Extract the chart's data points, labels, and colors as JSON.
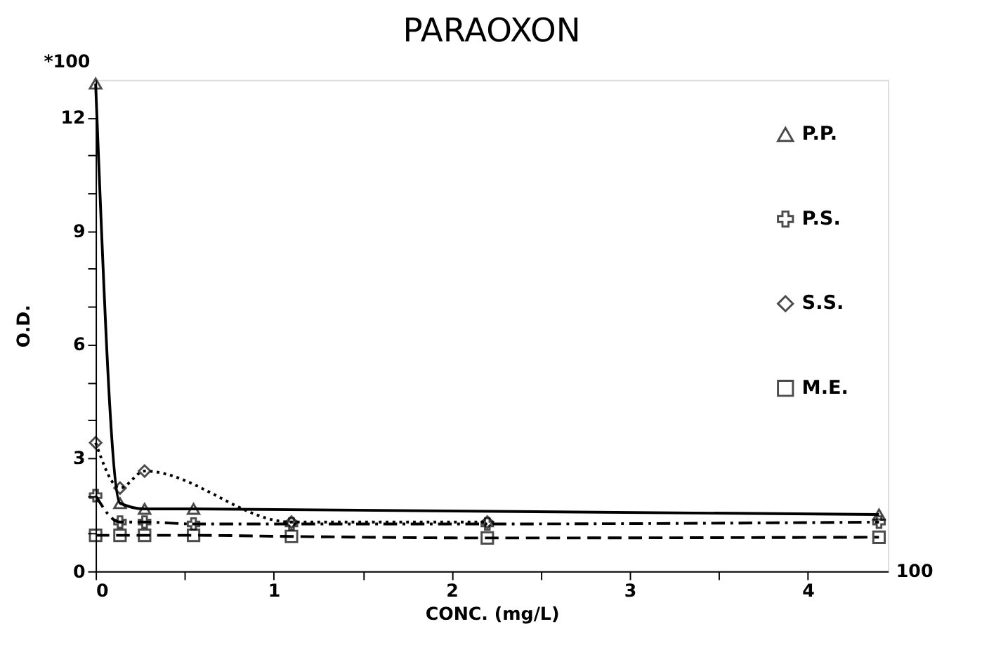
{
  "chart_data": {
    "type": "line",
    "title": "PARAOXON",
    "xlabel": "CONC.  (mg/L)",
    "ylabel": "O.D.",
    "x": [
      0,
      0.137,
      0.275,
      0.55,
      1.1,
      2.2,
      4.4
    ],
    "series": [
      {
        "name": "P.P.",
        "color": "#000000",
        "marker": "triangle",
        "line_style": "solid",
        "values": [
          12.9,
          1.8,
          1.65,
          1.65,
          null,
          null,
          1.5
        ]
      },
      {
        "name": "P.S.",
        "color": "#000000",
        "marker": "cross",
        "line_style": "dashdot",
        "values": [
          2.0,
          1.3,
          1.3,
          1.25,
          1.25,
          1.25,
          1.3
        ]
      },
      {
        "name": "S.S.",
        "color": "#000000",
        "marker": "diamond",
        "line_style": "dotted",
        "values": [
          3.4,
          2.2,
          2.65,
          null,
          1.3,
          1.3,
          null
        ]
      },
      {
        "name": "M.E.",
        "color": "#000000",
        "marker": "square",
        "line_style": "dashed",
        "values": [
          0.95,
          0.95,
          0.95,
          0.95,
          0.92,
          0.88,
          0.9
        ]
      }
    ],
    "xlim": [
      0,
      4.45
    ],
    "ylim": [
      0,
      13
    ],
    "xticks": [
      0,
      {
        "value": 0.5,
        "label": null
      },
      1,
      {
        "value": 1.5,
        "label": null
      },
      2,
      {
        "value": 2.5,
        "label": null
      },
      3,
      {
        "value": 3.5,
        "label": null
      },
      4
    ],
    "yticks": [
      0,
      {
        "value": 1,
        "label": null
      },
      {
        "value": 2,
        "label": null
      },
      3,
      {
        "value": 4,
        "label": null
      },
      {
        "value": 5,
        "label": null
      },
      6,
      {
        "value": 7,
        "label": null
      },
      {
        "value": 8,
        "label": null
      },
      9,
      {
        "value": 10,
        "label": null
      },
      {
        "value": 11,
        "label": null
      },
      12
    ],
    "annotations": [
      "*100",
      "100"
    ],
    "legend": "top right",
    "grid": false
  }
}
